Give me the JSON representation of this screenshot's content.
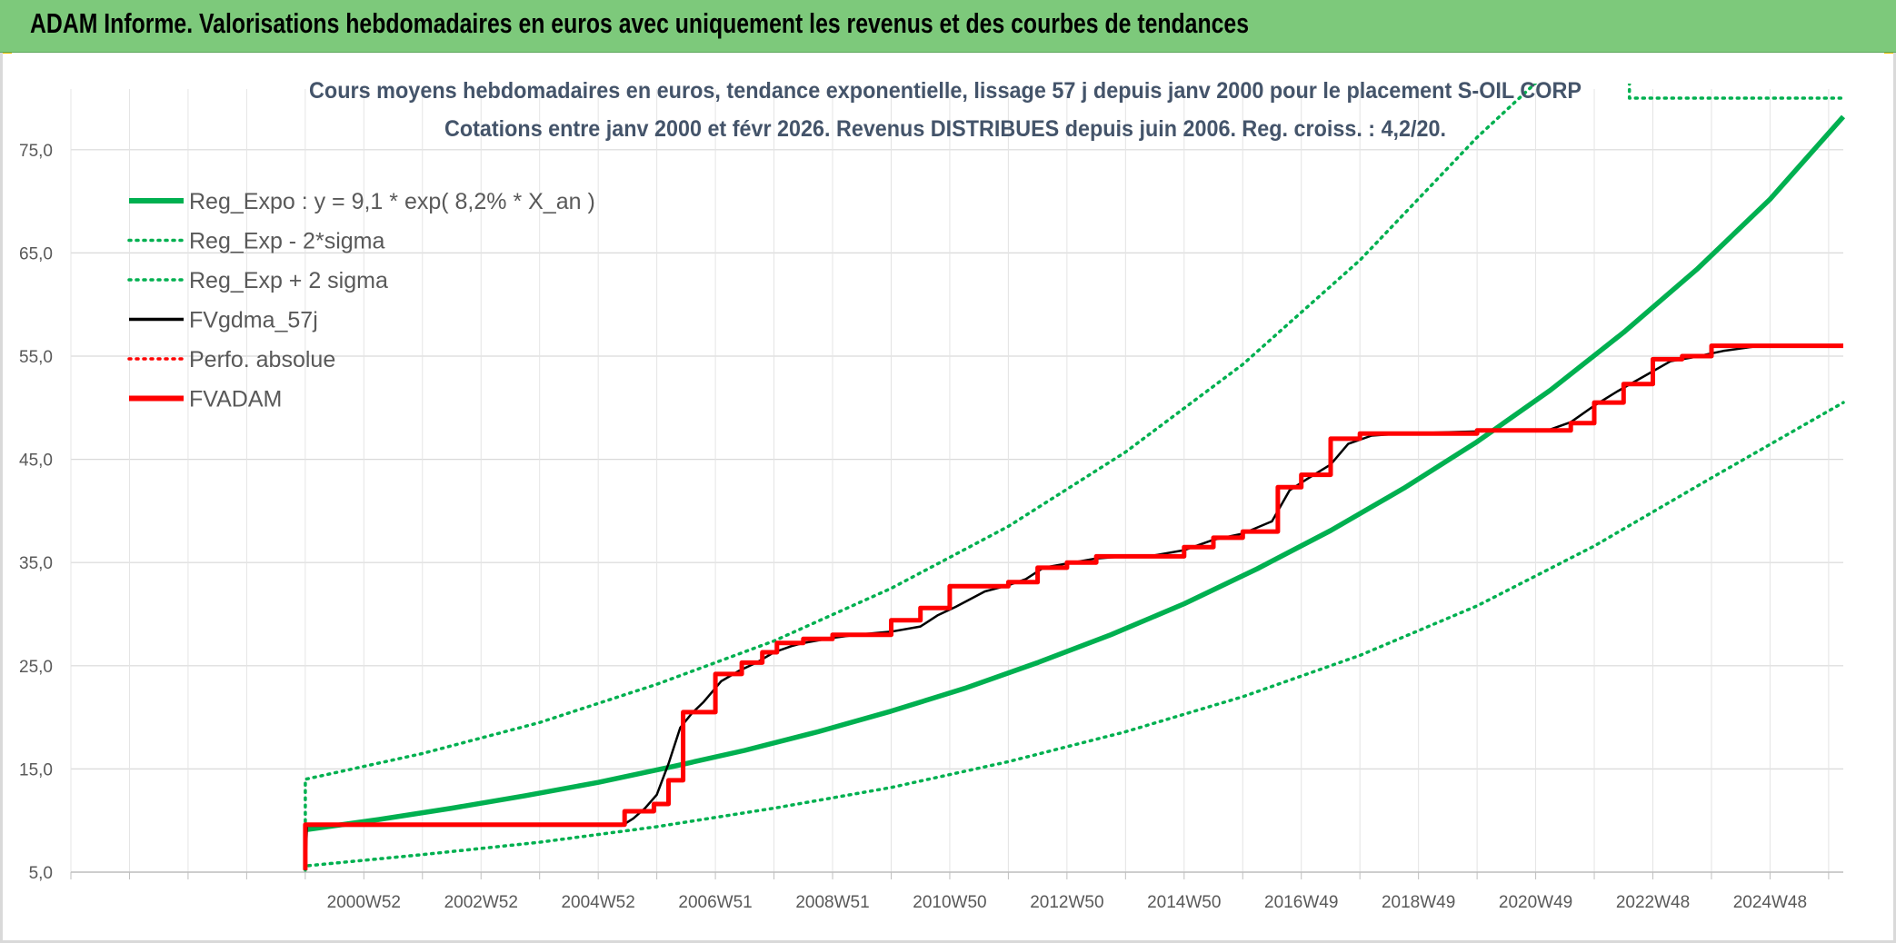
{
  "banner": {
    "title": "ADAM Informe. Valorisations hebdomadaires en euros avec uniquement les revenus et des courbes de tendances"
  },
  "colors": {
    "banner_bg": "#7dc97b",
    "reg_green": "#00b050",
    "red": "#ff0000",
    "black": "#000000",
    "grid": "#d9d9d9",
    "title_text": "#44546a"
  },
  "chart_data": {
    "type": "line",
    "title": "Cours moyens hebdomadaires en euros, tendance exponentielle, lissage 57 j depuis janv 2000 pour le placement S-OIL CORP",
    "subtitle": "Cotations entre janv 2000 et févr 2026. Revenus DISTRIBUES depuis juin 2006. Reg. croiss. : 4,2/20.",
    "xlabel": "",
    "ylabel": "",
    "xlim": [
      1996.0,
      2026.25
    ],
    "ylim": [
      5,
      80
    ],
    "grid": true,
    "legend_position": "top-left",
    "x_ticks": [
      {
        "x": 2001.0,
        "label": "2000W52"
      },
      {
        "x": 2003.0,
        "label": "2002W52"
      },
      {
        "x": 2005.0,
        "label": "2004W52"
      },
      {
        "x": 2007.0,
        "label": "2006W51"
      },
      {
        "x": 2009.0,
        "label": "2008W51"
      },
      {
        "x": 2011.0,
        "label": "2010W50"
      },
      {
        "x": 2013.0,
        "label": "2012W50"
      },
      {
        "x": 2015.0,
        "label": "2014W50"
      },
      {
        "x": 2017.0,
        "label": "2016W49"
      },
      {
        "x": 2019.0,
        "label": "2018W49"
      },
      {
        "x": 2021.0,
        "label": "2020W49"
      },
      {
        "x": 2023.0,
        "label": "2022W48"
      },
      {
        "x": 2025.0,
        "label": "2024W48"
      }
    ],
    "y_ticks": [
      {
        "y": 5,
        "label": "5,0"
      },
      {
        "y": 15,
        "label": "15,0"
      },
      {
        "y": 25,
        "label": "25,0"
      },
      {
        "y": 35,
        "label": "35,0"
      },
      {
        "y": 45,
        "label": "45,0"
      },
      {
        "y": 55,
        "label": "55,0"
      },
      {
        "y": 65,
        "label": "65,0"
      },
      {
        "y": 75,
        "label": "75,0"
      }
    ],
    "series": [
      {
        "name": "Reg_Expo : y = 9,1 * exp( 8,2% *  X_an )",
        "style": "thick-solid",
        "color": "#00b050",
        "x": [
          2000.0,
          2001.25,
          2002.5,
          2003.75,
          2005.0,
          2006.25,
          2007.5,
          2008.75,
          2010.0,
          2011.25,
          2012.5,
          2013.75,
          2015.0,
          2016.25,
          2017.5,
          2018.75,
          2020.0,
          2021.25,
          2022.5,
          2023.75,
          2025.0,
          2026.25
        ],
        "values": [
          9.1,
          10.1,
          11.2,
          12.4,
          13.7,
          15.2,
          16.8,
          18.6,
          20.6,
          22.8,
          25.3,
          28.0,
          31.0,
          34.4,
          38.1,
          42.2,
          46.7,
          51.7,
          57.3,
          63.4,
          70.2,
          78.2
        ]
      },
      {
        "name": "Reg_Exp - 2*sigma",
        "style": "dotted",
        "color": "#00b050",
        "x": [
          2000.0,
          2000.0,
          2002.0,
          2004.0,
          2006.0,
          2008.0,
          2010.0,
          2012.0,
          2014.0,
          2016.0,
          2018.0,
          2020.0,
          2022.0,
          2024.0,
          2026.25
        ],
        "values": [
          5.2,
          5.6,
          6.7,
          7.9,
          9.4,
          11.2,
          13.2,
          15.7,
          18.6,
          22.0,
          26.0,
          30.8,
          36.6,
          43.2,
          50.5
        ]
      },
      {
        "name": "Reg_Exp + 2 sigma",
        "style": "dotted",
        "color": "#00b050",
        "x": [
          2000.0,
          2000.0,
          2002.0,
          2004.0,
          2006.0,
          2008.0,
          2010.0,
          2012.0,
          2014.0,
          2016.0,
          2018.0,
          2020.0,
          2021.1,
          2022.6,
          2022.6,
          2026.25
        ],
        "values": [
          9.2,
          14.0,
          16.5,
          19.5,
          23.2,
          27.4,
          32.5,
          38.5,
          45.7,
          54.2,
          64.3,
          76.2,
          82.0,
          82.0,
          80.0,
          80.0
        ]
      },
      {
        "name": "FVgdma_57j",
        "style": "solid",
        "color": "#000000",
        "x": [
          2000.0,
          2000.03,
          2005.4,
          2005.6,
          2005.8,
          2006.0,
          2006.2,
          2006.4,
          2006.6,
          2006.8,
          2007.1,
          2007.4,
          2007.7,
          2008.0,
          2008.3,
          2008.5,
          2008.8,
          2009.0,
          2009.4,
          2010.0,
          2010.5,
          2010.8,
          2011.1,
          2011.6,
          2012.0,
          2012.3,
          2012.6,
          2013.0,
          2013.5,
          2014.0,
          2014.5,
          2015.0,
          2015.5,
          2016.0,
          2016.5,
          2016.8,
          2017.1,
          2017.5,
          2017.8,
          2018.2,
          2018.7,
          2020.0,
          2021.2,
          2021.6,
          2022.0,
          2022.4,
          2022.9,
          2023.3,
          2023.7,
          2024.2,
          2024.7,
          2026.25
        ],
        "values": [
          5.2,
          9.5,
          9.5,
          10.2,
          11.2,
          12.5,
          15.5,
          19.0,
          20.4,
          21.5,
          23.5,
          24.5,
          25.3,
          26.3,
          26.9,
          27.2,
          27.5,
          27.7,
          28.0,
          28.3,
          28.8,
          29.9,
          30.7,
          32.2,
          32.8,
          33.4,
          34.5,
          34.9,
          35.4,
          35.6,
          35.7,
          36.2,
          37.2,
          37.8,
          39.0,
          42.0,
          43.1,
          44.5,
          46.5,
          47.3,
          47.5,
          47.7,
          47.8,
          48.6,
          50.2,
          51.6,
          53.2,
          54.5,
          54.9,
          55.5,
          55.9,
          56.0
        ]
      },
      {
        "name": "Perfo. absolue",
        "style": "dotted",
        "color": "#ff0000",
        "x": [],
        "values": []
      },
      {
        "name": "FVADAM",
        "style": "thick-step",
        "color": "#ff0000",
        "x": [
          2000.0,
          2000.0,
          2005.45,
          2005.45,
          2005.95,
          2005.95,
          2006.2,
          2006.2,
          2006.45,
          2006.45,
          2007.0,
          2007.0,
          2007.45,
          2007.45,
          2007.8,
          2007.8,
          2008.05,
          2008.05,
          2008.5,
          2008.5,
          2009.0,
          2009.0,
          2010.0,
          2010.0,
          2010.5,
          2010.5,
          2011.0,
          2011.0,
          2012.0,
          2012.0,
          2012.5,
          2012.5,
          2013.0,
          2013.0,
          2013.5,
          2013.5,
          2015.0,
          2015.0,
          2015.5,
          2015.5,
          2016.0,
          2016.0,
          2016.6,
          2016.6,
          2017.0,
          2017.0,
          2017.5,
          2017.5,
          2018.0,
          2018.0,
          2020.0,
          2020.0,
          2021.6,
          2021.6,
          2022.0,
          2022.0,
          2022.5,
          2022.5,
          2023.0,
          2023.0,
          2023.5,
          2023.5,
          2024.0,
          2024.0,
          2026.25
        ],
        "values": [
          5.2,
          9.6,
          9.6,
          10.9,
          10.9,
          11.6,
          11.6,
          13.9,
          13.9,
          20.5,
          20.5,
          24.2,
          24.2,
          25.3,
          25.3,
          26.3,
          26.3,
          27.2,
          27.2,
          27.6,
          27.6,
          28.0,
          28.0,
          29.4,
          29.4,
          30.6,
          30.6,
          32.7,
          32.7,
          33.1,
          33.1,
          34.5,
          34.5,
          35.0,
          35.0,
          35.6,
          35.6,
          36.5,
          36.5,
          37.4,
          37.4,
          38.0,
          38.0,
          42.3,
          42.3,
          43.5,
          43.5,
          47.0,
          47.0,
          47.5,
          47.5,
          47.8,
          47.8,
          48.5,
          48.5,
          50.5,
          50.5,
          52.3,
          52.3,
          54.7,
          54.7,
          55.0,
          55.0,
          56.0,
          56.0
        ]
      }
    ]
  }
}
